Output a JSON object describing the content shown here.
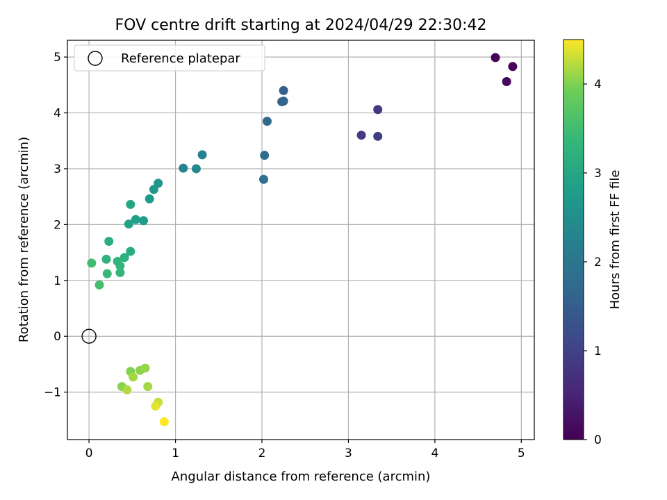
{
  "chart_data": {
    "type": "scatter",
    "title": "FOV centre drift starting at 2024/04/29 22:30:42",
    "xlabel": "Angular distance from reference (arcmin)",
    "ylabel": "Rotation from reference (arcmin)",
    "xlim": [
      -0.25,
      5.15
    ],
    "ylim": [
      -1.85,
      5.3
    ],
    "x_ticks": [
      0,
      1,
      2,
      3,
      4,
      5
    ],
    "x_tick_labels": [
      "0",
      "1",
      "2",
      "3",
      "4",
      "5"
    ],
    "y_ticks": [
      -1,
      0,
      1,
      2,
      3,
      4,
      5
    ],
    "y_tick_labels": [
      "−1",
      "0",
      "1",
      "2",
      "3",
      "4",
      "5"
    ],
    "grid": true,
    "legend": {
      "placement": "top-left",
      "entries": [
        "Reference platepar"
      ]
    },
    "reference_point": {
      "x": 0,
      "y": 0,
      "label": "Reference platepar"
    },
    "colorbar": {
      "label": "Hours from first FF file",
      "colormap": "viridis",
      "range": [
        0,
        4.5
      ],
      "ticks": [
        0,
        1,
        2,
        3,
        4
      ],
      "tick_labels": [
        "0",
        "1",
        "2",
        "3",
        "4"
      ]
    },
    "points": [
      {
        "x": 4.7,
        "y": 4.99,
        "c": 0.05
      },
      {
        "x": 4.9,
        "y": 4.83,
        "c": 0.08
      },
      {
        "x": 4.83,
        "y": 4.56,
        "c": 0.1
      },
      {
        "x": 3.34,
        "y": 4.06,
        "c": 0.85
      },
      {
        "x": 3.15,
        "y": 3.6,
        "c": 0.9
      },
      {
        "x": 3.34,
        "y": 3.58,
        "c": 0.95
      },
      {
        "x": 2.25,
        "y": 4.4,
        "c": 1.55
      },
      {
        "x": 2.25,
        "y": 4.21,
        "c": 1.6
      },
      {
        "x": 2.23,
        "y": 4.2,
        "c": 1.62
      },
      {
        "x": 2.06,
        "y": 3.85,
        "c": 1.7
      },
      {
        "x": 2.03,
        "y": 3.24,
        "c": 1.8
      },
      {
        "x": 2.02,
        "y": 2.81,
        "c": 1.85
      },
      {
        "x": 1.31,
        "y": 3.25,
        "c": 2.25
      },
      {
        "x": 1.09,
        "y": 3.01,
        "c": 2.3
      },
      {
        "x": 1.24,
        "y": 3.0,
        "c": 2.35
      },
      {
        "x": 0.8,
        "y": 2.74,
        "c": 2.65
      },
      {
        "x": 0.75,
        "y": 2.63,
        "c": 2.7
      },
      {
        "x": 0.7,
        "y": 2.46,
        "c": 2.75
      },
      {
        "x": 0.48,
        "y": 2.36,
        "c": 2.95
      },
      {
        "x": 0.54,
        "y": 2.09,
        "c": 2.85
      },
      {
        "x": 0.63,
        "y": 2.07,
        "c": 2.8
      },
      {
        "x": 0.46,
        "y": 2.01,
        "c": 2.9
      },
      {
        "x": 0.23,
        "y": 1.7,
        "c": 3.15
      },
      {
        "x": 0.48,
        "y": 1.52,
        "c": 3.1
      },
      {
        "x": 0.41,
        "y": 1.41,
        "c": 3.2
      },
      {
        "x": 0.2,
        "y": 1.38,
        "c": 3.25
      },
      {
        "x": 0.33,
        "y": 1.34,
        "c": 3.28
      },
      {
        "x": 0.36,
        "y": 1.26,
        "c": 3.3
      },
      {
        "x": 0.03,
        "y": 1.31,
        "c": 3.5
      },
      {
        "x": 0.36,
        "y": 1.14,
        "c": 3.35
      },
      {
        "x": 0.21,
        "y": 1.12,
        "c": 3.4
      },
      {
        "x": 0.12,
        "y": 0.92,
        "c": 3.55
      },
      {
        "x": 0.48,
        "y": -0.63,
        "c": 4.0
      },
      {
        "x": 0.59,
        "y": -0.61,
        "c": 4.05
      },
      {
        "x": 0.65,
        "y": -0.57,
        "c": 4.1
      },
      {
        "x": 0.51,
        "y": -0.73,
        "c": 4.15
      },
      {
        "x": 0.38,
        "y": -0.9,
        "c": 4.05
      },
      {
        "x": 0.44,
        "y": -0.96,
        "c": 4.2
      },
      {
        "x": 0.68,
        "y": -0.9,
        "c": 4.15
      },
      {
        "x": 0.8,
        "y": -1.18,
        "c": 4.3
      },
      {
        "x": 0.77,
        "y": -1.25,
        "c": 4.4
      },
      {
        "x": 0.87,
        "y": -1.53,
        "c": 4.5
      }
    ]
  }
}
